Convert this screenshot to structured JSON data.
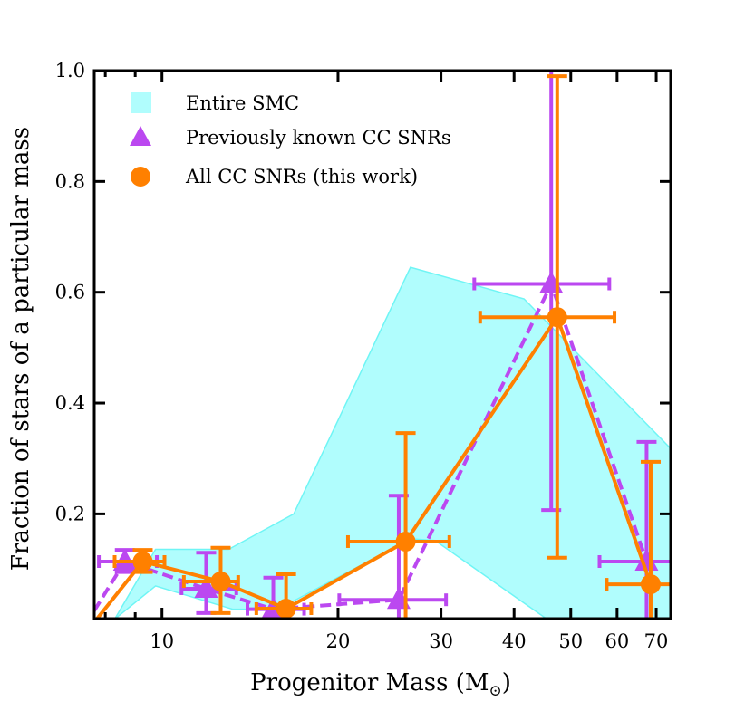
{
  "chart_data": {
    "type": "scatter",
    "xlabel": "Progenitor Mass (M",
    "xlabel_sub": "⊙",
    "xlabel_close": ")",
    "ylabel": "Fraction of stars of a particular mass",
    "xscale": "log",
    "xlim": [
      7.66,
      74.1
    ],
    "ylim": [
      0.011,
      1.0
    ],
    "xticks": [
      10,
      20,
      30,
      40,
      50,
      60,
      70
    ],
    "xtick_labels": [
      "10",
      "20",
      "30",
      "40",
      "50",
      "60",
      "70"
    ],
    "yticks": [
      0.2,
      0.4,
      0.6,
      0.8,
      1.0
    ],
    "ytick_labels": [
      "0.2",
      "0.4",
      "0.6",
      "0.8",
      "1.0"
    ],
    "grid": false,
    "legend_placement": "top-left",
    "band": {
      "name": "Entire SMC",
      "color": "#b0fdfd",
      "edge_color": "#6ff5f5",
      "upper": [
        [
          8.3,
          0.01
        ],
        [
          9.75,
          0.136
        ],
        [
          13.0,
          0.136
        ],
        [
          16.8,
          0.2
        ],
        [
          26.6,
          0.645
        ],
        [
          41.6,
          0.588
        ],
        [
          74.1,
          0.318
        ]
      ],
      "lower": [
        [
          8.3,
          0.01
        ],
        [
          9.75,
          0.07
        ],
        [
          13.2,
          0.028
        ],
        [
          15.8,
          0.028
        ],
        [
          26.6,
          0.155
        ],
        [
          29.3,
          0.152
        ],
        [
          45.4,
          0.011
        ],
        [
          74.1,
          0.011
        ]
      ]
    },
    "series": [
      {
        "name": "Previously known CC SNRs",
        "marker": "triangle",
        "line": "dashed",
        "color": "#bb48f0",
        "line_origin": [
          7.4,
          0.0
        ],
        "points": [
          {
            "x": 8.64,
            "y": 0.114,
            "xerr": [
              7.8,
              9.8
            ],
            "yerr": [
              0.095,
              0.135
            ]
          },
          {
            "x": 11.9,
            "y": 0.065,
            "xerr": [
              10.8,
              13.4
            ],
            "yerr": [
              0.021,
              0.13
            ]
          },
          {
            "x": 15.5,
            "y": 0.028,
            "xerr": [
              14.0,
              17.5
            ],
            "yerr": [
              0.0,
              0.085
            ]
          },
          {
            "x": 25.4,
            "y": 0.045,
            "xerr": [
              20.1,
              30.6
            ],
            "yerr": [
              0.0,
              0.233
            ]
          },
          {
            "x": 46.3,
            "y": 0.615,
            "xerr": [
              34.2,
              58.2
            ],
            "yerr": [
              0.207,
              1.05
            ]
          },
          {
            "x": 67.4,
            "y": 0.114,
            "xerr": [
              56.0,
              80.0
            ],
            "yerr": [
              0.0,
              0.33
            ]
          }
        ]
      },
      {
        "name": "All CC SNRs (this work)",
        "marker": "circle",
        "line": "solid",
        "color": "#ff8000",
        "line_origin": [
          7.6,
          0.0
        ],
        "points": [
          {
            "x": 9.27,
            "y": 0.114,
            "xerr": [
              8.3,
              10.1
            ],
            "yerr": [
              0.095,
              0.135
            ]
          },
          {
            "x": 12.6,
            "y": 0.078,
            "xerr": [
              10.9,
              13.5
            ],
            "yerr": [
              0.021,
              0.139
            ]
          },
          {
            "x": 16.3,
            "y": 0.029,
            "xerr": [
              14.5,
              18.0
            ],
            "yerr": [
              0.0,
              0.091
            ]
          },
          {
            "x": 26.1,
            "y": 0.15,
            "xerr": [
              20.8,
              31.0
            ],
            "yerr": [
              0.0,
              0.346
            ]
          },
          {
            "x": 47.4,
            "y": 0.555,
            "xerr": [
              35.0,
              59.4
            ],
            "yerr": [
              0.121,
              0.99
            ]
          },
          {
            "x": 68.5,
            "y": 0.073,
            "xerr": [
              57.6,
              80.0
            ],
            "yerr": [
              0.0,
              0.294
            ]
          }
        ]
      }
    ],
    "legend": [
      "Entire SMC",
      "Previously known CC SNRs",
      "All CC SNRs (this work)"
    ]
  }
}
